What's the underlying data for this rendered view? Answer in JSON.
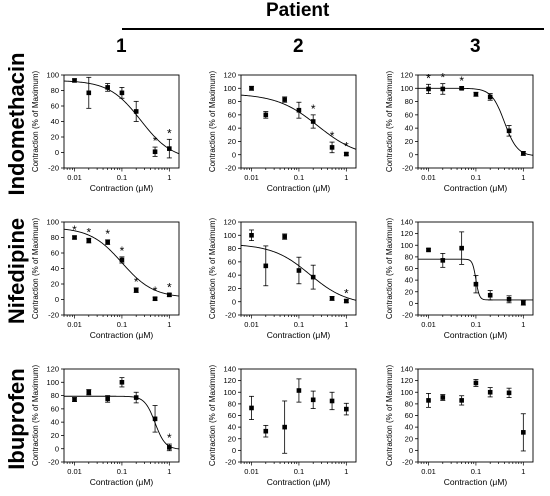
{
  "figure": {
    "header": "Patient",
    "patients": [
      "1",
      "2",
      "3"
    ],
    "drugs": [
      "Indomethacin",
      "Nifedipine",
      "Ibuprofen"
    ]
  },
  "chart_data": [
    {
      "type": "scatter",
      "drug": "Indomethacin",
      "patient": "1",
      "xlabel": "Contraction (μM)",
      "ylabel": "Contraction (% of Maximum)",
      "x_scale": "log",
      "xlim": [
        0.006,
        1.6
      ],
      "ylim": [
        -20,
        100
      ],
      "x_ticks": [
        "0.01",
        "0.1",
        "1"
      ],
      "y_ticks": [
        -20,
        0,
        20,
        40,
        60,
        80,
        100
      ],
      "x": [
        0.01,
        0.02,
        0.05,
        0.1,
        0.2,
        0.5,
        1
      ],
      "y": [
        93,
        77,
        84,
        77,
        53,
        1,
        5
      ],
      "err": [
        2,
        20,
        5,
        7,
        13,
        6,
        12
      ],
      "significant": [
        false,
        false,
        false,
        false,
        false,
        true,
        true
      ],
      "fit": {
        "top": 93,
        "bottom": -10,
        "ic50": 0.25,
        "hill": 1.3
      }
    },
    {
      "type": "scatter",
      "drug": "Indomethacin",
      "patient": "2",
      "xlabel": "Contraction (μM)",
      "ylabel": "Contraction (% of Maximum)",
      "x_scale": "log",
      "xlim": [
        0.006,
        1.6
      ],
      "ylim": [
        -20,
        120
      ],
      "x_ticks": [
        "0.01",
        "0.1",
        "1"
      ],
      "y_ticks": [
        -20,
        0,
        20,
        40,
        60,
        80,
        100,
        120
      ],
      "x": [
        0.01,
        0.02,
        0.05,
        0.1,
        0.2,
        0.5,
        1
      ],
      "y": [
        100,
        60,
        83,
        67,
        50,
        11,
        1
      ],
      "err": [
        3,
        5,
        4,
        12,
        10,
        8,
        2
      ],
      "significant": [
        false,
        false,
        false,
        false,
        true,
        true,
        true
      ],
      "fit": {
        "top": 92,
        "bottom": -5,
        "ic50": 0.25,
        "hill": 1.0
      }
    },
    {
      "type": "scatter",
      "drug": "Indomethacin",
      "patient": "3",
      "xlabel": "Contraction (μM)",
      "ylabel": "Contraction (% of Maximum)",
      "x_scale": "log",
      "xlim": [
        0.006,
        1.6
      ],
      "ylim": [
        -20,
        120
      ],
      "x_ticks": [
        "0.01",
        "0.1",
        "1"
      ],
      "y_ticks": [
        -20,
        0,
        20,
        40,
        60,
        80,
        100,
        120
      ],
      "x": [
        0.01,
        0.02,
        0.05,
        0.1,
        0.2,
        0.5,
        1
      ],
      "y": [
        99,
        99,
        100,
        91,
        87,
        36,
        2
      ],
      "err": [
        7,
        8,
        2,
        3,
        5,
        8,
        3
      ],
      "significant": [
        true,
        true,
        true,
        false,
        false,
        false,
        false
      ],
      "fit": {
        "top": 100,
        "bottom": -2,
        "ic50": 0.4,
        "hill": 3.2
      }
    },
    {
      "type": "scatter",
      "drug": "Nifedipine",
      "patient": "1",
      "xlabel": "Contraction (μM)",
      "ylabel": "Contraction (% of Maximum)",
      "x_scale": "log",
      "xlim": [
        0.006,
        1.6
      ],
      "ylim": [
        -20,
        100
      ],
      "x_ticks": [
        "0.01",
        "0.1",
        "1"
      ],
      "y_ticks": [
        -20,
        0,
        20,
        40,
        60,
        80,
        100
      ],
      "x": [
        0.01,
        0.02,
        0.05,
        0.1,
        0.2,
        0.5,
        1
      ],
      "y": [
        80,
        76,
        74,
        51,
        12,
        1,
        6
      ],
      "err": [
        2,
        3,
        3,
        4,
        3,
        2,
        2
      ],
      "significant": [
        true,
        true,
        true,
        true,
        true,
        true,
        true
      ],
      "fit": {
        "top": 93,
        "bottom": 2,
        "ic50": 0.1,
        "hill": 1.3
      }
    },
    {
      "type": "scatter",
      "drug": "Nifedipine",
      "patient": "2",
      "xlabel": "Contraction (μM)",
      "ylabel": "Contraction (% of Maximum)",
      "x_scale": "log",
      "xlim": [
        0.006,
        1.6
      ],
      "ylim": [
        -20,
        120
      ],
      "x_ticks": [
        "0.01",
        "0.1",
        "1"
      ],
      "y_ticks": [
        -20,
        0,
        20,
        40,
        60,
        80,
        100,
        120
      ],
      "x": [
        0.01,
        0.02,
        0.05,
        0.1,
        0.2,
        0.5,
        1
      ],
      "y": [
        100,
        54,
        98,
        47,
        37,
        5,
        1
      ],
      "err": [
        8,
        30,
        4,
        20,
        18,
        3,
        2
      ],
      "significant": [
        false,
        false,
        false,
        false,
        false,
        false,
        true
      ],
      "fit": {
        "top": 87,
        "bottom": -5,
        "ic50": 0.17,
        "hill": 1.1
      }
    },
    {
      "type": "scatter",
      "drug": "Nifedipine",
      "patient": "3",
      "xlabel": "Contraction (μM)",
      "ylabel": "Contraction (% of Maximum)",
      "x_scale": "log",
      "xlim": [
        0.006,
        1.6
      ],
      "ylim": [
        -20,
        140
      ],
      "x_ticks": [
        "0.01",
        "0.1",
        "1"
      ],
      "y_ticks": [
        -20,
        0,
        20,
        40,
        60,
        80,
        100,
        120,
        140
      ],
      "x": [
        0.01,
        0.02,
        0.05,
        0.1,
        0.2,
        0.5,
        1
      ],
      "y": [
        92,
        74,
        95,
        33,
        14,
        7,
        1
      ],
      "err": [
        2,
        12,
        28,
        15,
        8,
        6,
        4
      ],
      "significant": [
        false,
        false,
        false,
        false,
        false,
        false,
        false
      ],
      "fit": {
        "top": 76,
        "bottom": 6,
        "ic50": 0.1,
        "hill": 12
      }
    },
    {
      "type": "scatter",
      "drug": "Ibuprofen",
      "patient": "1",
      "xlabel": "Contraction (μM)",
      "ylabel": "Contraction (% of Maximum)",
      "x_scale": "log",
      "xlim": [
        0.006,
        1.6
      ],
      "ylim": [
        -20,
        120
      ],
      "x_ticks": [
        "0.01",
        "0.1",
        "1"
      ],
      "y_ticks": [
        -20,
        0,
        20,
        40,
        60,
        80,
        100,
        120
      ],
      "x": [
        0.01,
        0.02,
        0.05,
        0.1,
        0.2,
        0.5,
        1
      ],
      "y": [
        74,
        85,
        75,
        100,
        77,
        45,
        2
      ],
      "err": [
        3,
        4,
        5,
        7,
        8,
        20,
        5
      ],
      "significant": [
        false,
        false,
        false,
        false,
        false,
        false,
        true
      ],
      "fit": {
        "top": 79,
        "bottom": -1,
        "ic50": 0.5,
        "hill": 4
      }
    },
    {
      "type": "scatter",
      "drug": "Ibuprofen",
      "patient": "2",
      "xlabel": "Contraction (μM)",
      "ylabel": "Contraction (% of Maximum)",
      "x_scale": "log",
      "xlim": [
        0.006,
        1.6
      ],
      "ylim": [
        -20,
        140
      ],
      "x_ticks": [
        "0.01",
        "0.1",
        "1"
      ],
      "y_ticks": [
        -20,
        0,
        20,
        40,
        60,
        80,
        100,
        120,
        140
      ],
      "x": [
        0.01,
        0.02,
        0.05,
        0.1,
        0.2,
        0.5,
        1
      ],
      "y": [
        73,
        33,
        40,
        103,
        87,
        85,
        71
      ],
      "err": [
        20,
        10,
        45,
        20,
        15,
        15,
        10
      ],
      "significant": [
        false,
        false,
        false,
        false,
        false,
        false,
        false
      ],
      "fit": null
    },
    {
      "type": "scatter",
      "drug": "Ibuprofen",
      "patient": "3",
      "xlabel": "Contraction (μM)",
      "ylabel": "Contraction (% of Maximum)",
      "x_scale": "log",
      "xlim": [
        0.006,
        1.6
      ],
      "ylim": [
        -20,
        140
      ],
      "x_ticks": [
        "0.01",
        "0.1",
        "1"
      ],
      "y_ticks": [
        -20,
        0,
        20,
        40,
        60,
        80,
        100,
        120,
        140
      ],
      "x": [
        0.01,
        0.02,
        0.05,
        0.1,
        0.2,
        0.5,
        1
      ],
      "y": [
        86,
        91,
        86,
        116,
        100,
        99,
        31
      ],
      "err": [
        12,
        5,
        8,
        6,
        8,
        8,
        32
      ],
      "significant": [
        false,
        false,
        false,
        false,
        false,
        false,
        false
      ],
      "fit": null
    }
  ]
}
